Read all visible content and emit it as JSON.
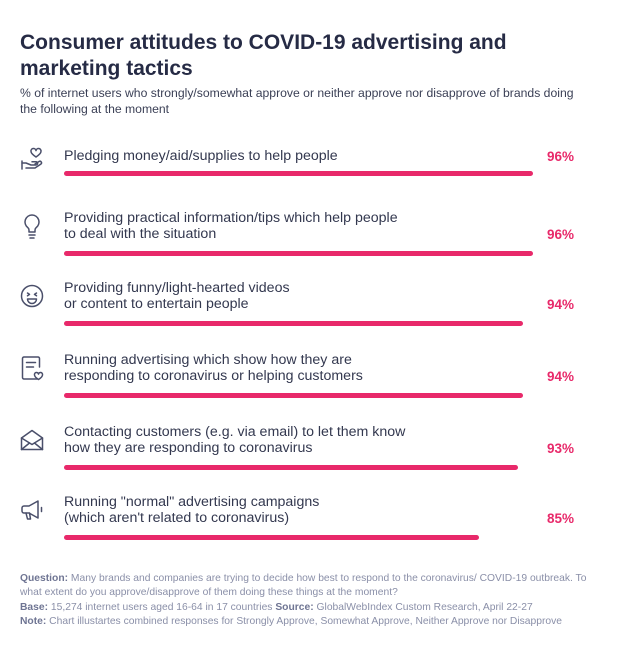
{
  "title": "Consumer attitudes to COVID-19 advertising and marketing tactics",
  "subtitle": "% of internet users who strongly/somewhat approve or neither approve nor disapprove of brands doing the following at the moment",
  "chart_data": {
    "type": "bar",
    "orientation": "horizontal",
    "title": "Consumer attitudes to COVID-19 advertising and marketing tactics",
    "unit": "%",
    "xlim": [
      0,
      100
    ],
    "categories": [
      [
        "Pledging money/aid/supplies to help people"
      ],
      [
        "Providing practical information/tips which help people",
        "to deal with the situation"
      ],
      [
        "Providing funny/light-hearted videos",
        "or content to entertain people"
      ],
      [
        "Running advertising which show how they are",
        "responding to coronavirus or helping customers"
      ],
      [
        "Contacting customers (e.g. via email) to let them know",
        "how they are responding to coronavirus"
      ],
      [
        "Running \"normal\" advertising campaigns",
        "(which aren't related to coronavirus)"
      ]
    ],
    "values": [
      96,
      96,
      94,
      94,
      93,
      85
    ],
    "value_labels": [
      "96%",
      "96%",
      "94%",
      "94%",
      "93%",
      "85%"
    ],
    "icons": [
      "heart-hand-icon",
      "lightbulb-icon",
      "smiley-icon",
      "document-heart-icon",
      "envelope-icon",
      "megaphone-icon"
    ],
    "bar_color": "#e8296a"
  },
  "footnote": {
    "question_label": "Question:",
    "question_text": " Many brands and companies are trying to decide how best to respond to the coronavirus/ COVID-19 outbreak. To what extent do you approve/disapprove of them doing these things at the moment?",
    "base_label": "Base:",
    "base_text": " 15,274 internet users aged 16-64 in 17 countries ",
    "source_label": "Source:",
    "source_text": " GlobalWebIndex Custom Research, April 22-27",
    "note_label": "Note:",
    "note_text": " Chart illustartes combined responses for Strongly Approve, Somewhat Approve, Neither Approve nor Disapprove"
  }
}
